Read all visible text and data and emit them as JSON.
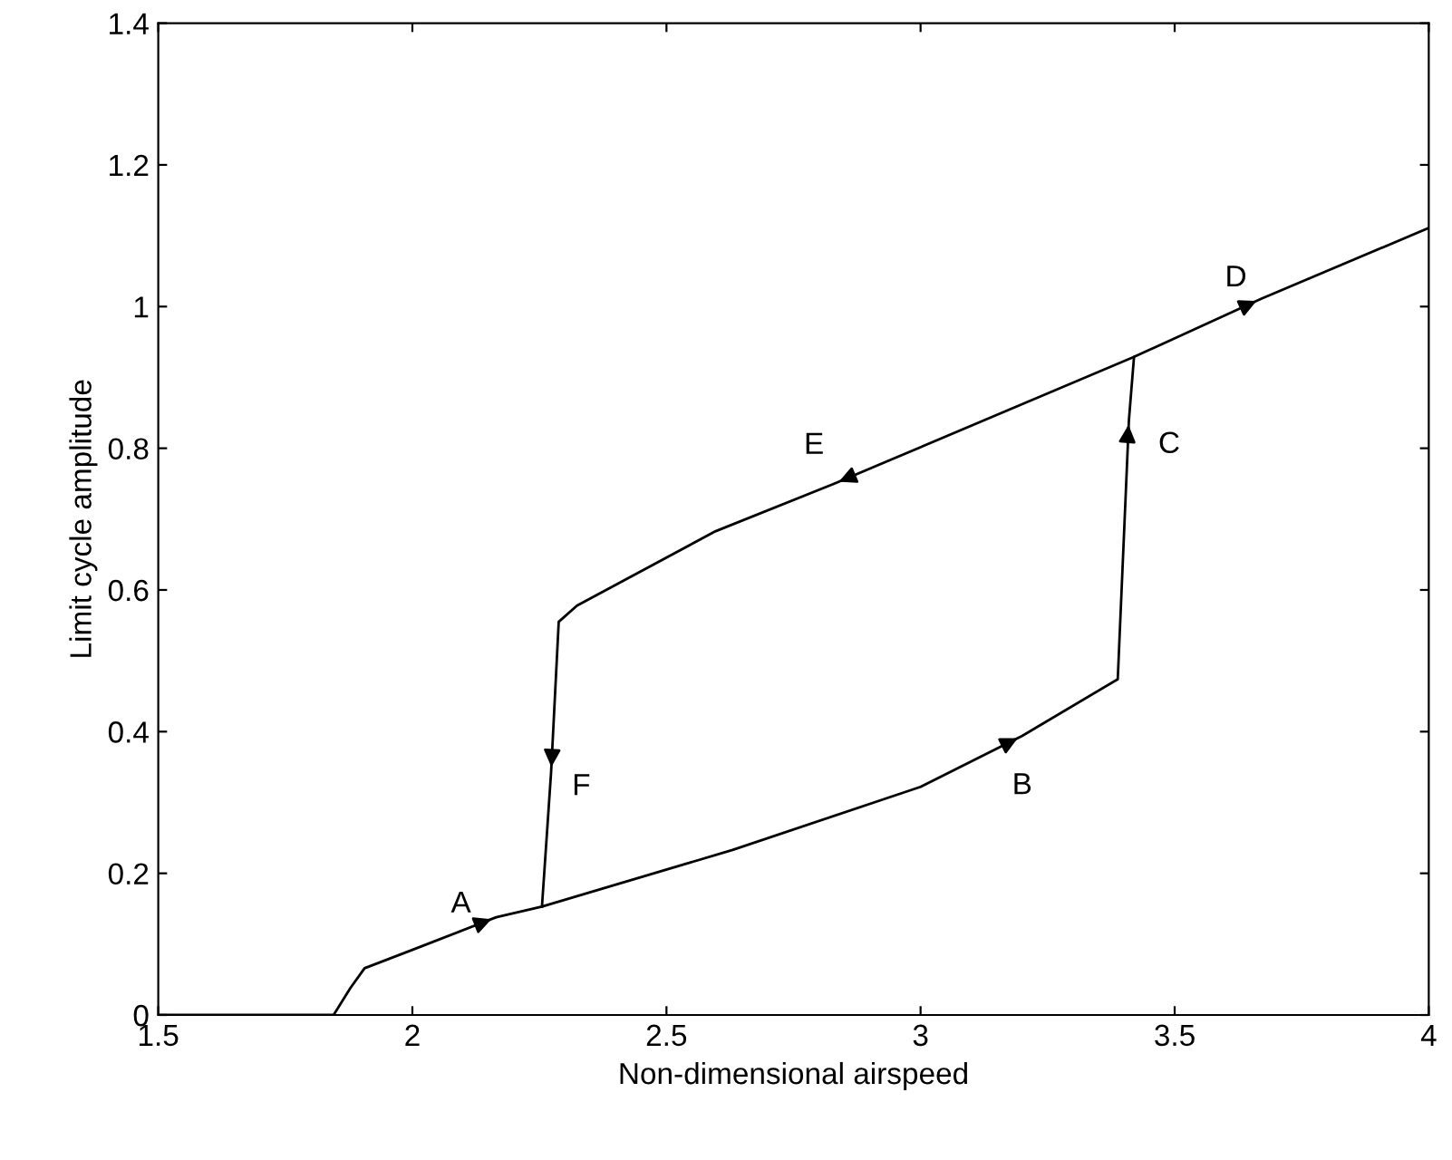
{
  "chart_data": {
    "type": "line",
    "xlabel": "Non-dimensional airspeed",
    "ylabel": "Limit cycle amplitude",
    "xlim": [
      1.5,
      4
    ],
    "ylim": [
      0,
      1.4
    ],
    "xticks": [
      1.5,
      2,
      2.5,
      3,
      3.5,
      4
    ],
    "yticks": [
      0,
      0.2,
      0.4,
      0.6,
      0.8,
      1,
      1.2,
      1.4
    ],
    "grid": false,
    "legend": false,
    "series": [
      {
        "color": "#000000",
        "x": [
          1.5,
          1.845,
          1.878,
          1.906,
          2.0,
          2.165,
          2.255,
          2.63,
          3.0,
          3.2,
          3.388,
          3.41,
          3.42,
          3.67,
          4.0
        ],
        "values": [
          0,
          0,
          0.038,
          0.066,
          0.092,
          0.138,
          0.153,
          0.233,
          0.322,
          0.394,
          0.474,
          0.84,
          0.929,
          1.011,
          1.111
        ]
      },
      {
        "color": "#000000",
        "x": [
          3.42,
          2.83,
          2.597,
          2.324,
          2.288,
          2.273,
          2.255
        ],
        "values": [
          0.929,
          0.75,
          0.683,
          0.578,
          0.555,
          0.343,
          0.153
        ]
      }
    ],
    "annotations": [
      {
        "text": "A",
        "x": 2.165,
        "y": 0.138
      },
      {
        "text": "B",
        "x": 3.2,
        "y": 0.394
      },
      {
        "text": "C",
        "x": 3.41,
        "y": 0.84
      },
      {
        "text": "D",
        "x": 3.67,
        "y": 1.011
      },
      {
        "text": "E",
        "x": 2.83,
        "y": 0.75
      },
      {
        "text": "F",
        "x": 2.273,
        "y": 0.343
      }
    ]
  }
}
